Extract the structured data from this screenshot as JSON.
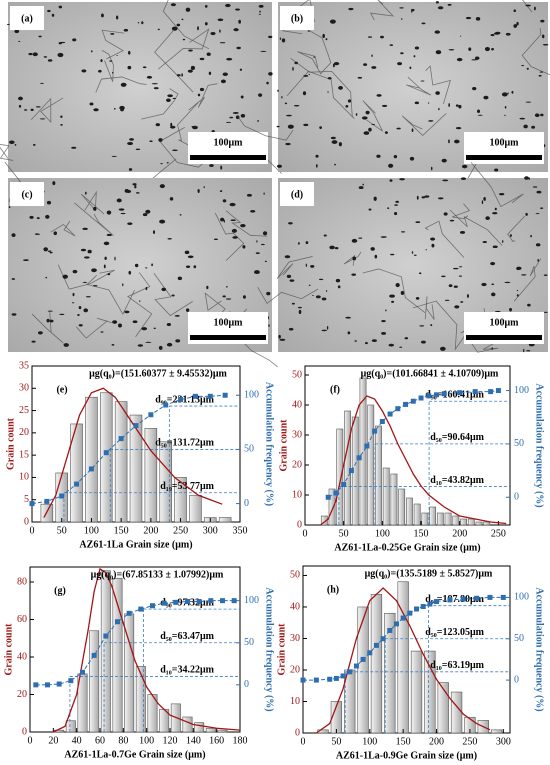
{
  "micrographs": [
    {
      "label": "(a)",
      "scale_bar": "100μm"
    },
    {
      "label": "(b)",
      "scale_bar": "100μm"
    },
    {
      "label": "(c)",
      "scale_bar": "100μm"
    },
    {
      "label": "(d)",
      "scale_bar": "100μm"
    }
  ],
  "chart_data": [
    {
      "type": "histogram",
      "panel_label": "(e)",
      "annotation": "μg(q₀)=(151.60377 ± 9.45532)μm",
      "x_label": "AZ61-1La Grain size (μm)",
      "y_label": "Grain count",
      "y2_label": "Accumulation frequency (%)",
      "bins": [
        12.5,
        37.5,
        62.5,
        87.5,
        112.5,
        137.5,
        162.5,
        187.5,
        212.5,
        237.5,
        262.5,
        287.5,
        312.5,
        337.5
      ],
      "counts": [
        4,
        11,
        22,
        28,
        29,
        27,
        24,
        21,
        18,
        10,
        6,
        1,
        1
      ],
      "bar_color": "#cfcfcf",
      "xlim": [
        0,
        350
      ],
      "xticks": [
        0,
        50,
        100,
        150,
        200,
        250,
        300,
        350
      ],
      "ylim": [
        0,
        35
      ],
      "yticks": [
        0,
        5,
        10,
        15,
        20,
        25,
        30,
        35
      ],
      "y2lim": [
        -17,
        127
      ],
      "y2ticks": [
        0,
        50,
        100
      ],
      "series": [
        {
          "color": "#a31515",
          "x": [
            20,
            40,
            60,
            80,
            100,
            120,
            140,
            160,
            180,
            200,
            220,
            240,
            260,
            280,
            300,
            320
          ],
          "values": [
            1,
            6,
            15,
            24,
            29,
            30,
            28,
            24,
            20,
            16,
            13,
            10,
            8,
            6,
            5,
            4
          ]
        },
        {
          "color": "#2e6eb0",
          "axis": "y2",
          "x": [
            0,
            25,
            50,
            75,
            100,
            125,
            150,
            175,
            200,
            225,
            250,
            275,
            300,
            325
          ],
          "values": [
            0,
            2,
            7,
            18,
            32,
            47,
            60,
            72,
            82,
            91,
            96,
            99,
            99,
            100
          ]
        }
      ],
      "percentiles": [
        {
          "value": 53.77,
          "percent": 10,
          "label": "d₁₀=53.77μm"
        },
        {
          "value": 131.72,
          "percent": 50,
          "label": "d₅₀=131.72μm"
        },
        {
          "value": 231.13,
          "percent": 90,
          "label": "d₉₀=231.13μm"
        }
      ]
    },
    {
      "type": "histogram",
      "panel_label": "(f)",
      "annotation": "μg(q₀)=(101.66841 ± 4.10709)μm",
      "x_label": "AZ61-1La-0.25Ge Grain size (μm)",
      "y_label": "Grain count",
      "y2_label": "Accumulation frequency (%)",
      "bins": [
        20,
        30,
        40,
        50,
        60,
        70,
        80,
        90,
        100,
        110,
        120,
        130,
        140,
        150,
        160,
        170,
        180,
        190,
        200,
        210,
        220,
        230,
        240
      ],
      "counts": [
        3,
        12,
        32,
        38,
        36,
        49,
        40,
        33,
        19,
        17,
        12,
        9,
        7,
        4,
        6,
        4,
        4,
        3,
        2,
        2,
        1,
        1
      ],
      "bar_color": "#cfcfcf",
      "xlim": [
        0,
        265
      ],
      "xticks": [
        0,
        50,
        100,
        150,
        200,
        250
      ],
      "ylim": [
        0,
        53
      ],
      "yticks": [
        0,
        10,
        20,
        30,
        40,
        50
      ],
      "y2lim": [
        -26,
        123
      ],
      "y2ticks": [
        0,
        50,
        100
      ],
      "series": [
        {
          "color": "#a31515",
          "x": [
            20,
            30,
            40,
            50,
            60,
            70,
            80,
            90,
            100,
            110,
            120,
            130,
            140,
            150,
            160,
            180,
            200,
            220,
            240,
            260
          ],
          "values": [
            0,
            2,
            8,
            20,
            32,
            40,
            43,
            42,
            38,
            33,
            27,
            22,
            17,
            13,
            10,
            6,
            3,
            2,
            1,
            0.5
          ]
        },
        {
          "color": "#2e6eb0",
          "axis": "y2",
          "x": [
            30,
            40,
            50,
            60,
            70,
            80,
            90,
            100,
            110,
            120,
            130,
            140,
            150,
            160,
            170,
            180,
            200,
            220,
            240,
            250
          ],
          "values": [
            0,
            4,
            12,
            25,
            37,
            48,
            62,
            71,
            78,
            83,
            87,
            90,
            93,
            95,
            96,
            97,
            98,
            99,
            99,
            100
          ]
        }
      ],
      "percentiles": [
        {
          "value": 43.82,
          "percent": 10,
          "label": "d₁₀=43.82μm"
        },
        {
          "value": 90.64,
          "percent": 50,
          "label": "d₅₀=90.64μm"
        },
        {
          "value": 160.41,
          "percent": 90,
          "label": "d₉₀=160.41μm"
        }
      ]
    },
    {
      "type": "histogram",
      "panel_label": "(g)",
      "annotation": "μg(q₀)=(67.85133 ± 1.07992)μm",
      "x_label": "AZ61-1La-0.7Ge Grain size (μm)",
      "y_label": "Grain count",
      "y2_label": "Accumulation frequency (%)",
      "bins": [
        20,
        30,
        40,
        50,
        60,
        70,
        80,
        90,
        100,
        110,
        120,
        130,
        140,
        150,
        160,
        170
      ],
      "counts": [
        1,
        6,
        31,
        54,
        86,
        82,
        63,
        35,
        20,
        12,
        15,
        8,
        5,
        2,
        1
      ],
      "bar_color": "#cfcfcf",
      "xlim": [
        0,
        180
      ],
      "xticks": [
        0,
        20,
        40,
        60,
        80,
        100,
        120,
        140,
        160,
        180
      ],
      "ylim": [
        0,
        88
      ],
      "yticks": [
        0,
        20,
        40,
        60,
        80
      ],
      "y2lim": [
        -56,
        140
      ],
      "y2ticks": [
        0,
        50,
        100
      ],
      "series": [
        {
          "color": "#a31515",
          "x": [
            20,
            30,
            40,
            50,
            55,
            60,
            65,
            70,
            80,
            90,
            100,
            110,
            120,
            140,
            160,
            180
          ],
          "values": [
            0,
            3,
            20,
            55,
            75,
            87,
            85,
            78,
            58,
            38,
            24,
            15,
            9,
            4,
            2,
            1
          ]
        },
        {
          "color": "#2e6eb0",
          "axis": "y2",
          "x": [
            5,
            15,
            25,
            35,
            45,
            55,
            65,
            75,
            85,
            95,
            105,
            115,
            125,
            135,
            145,
            155,
            165,
            175
          ],
          "values": [
            0,
            0,
            1,
            5,
            15,
            35,
            58,
            75,
            85,
            90,
            94,
            97,
            98,
            99,
            99,
            100,
            100,
            100
          ]
        }
      ],
      "percentiles": [
        {
          "value": 34.22,
          "percent": 10,
          "label": "d₁₀=34.22μm"
        },
        {
          "value": 63.47,
          "percent": 50,
          "label": "d₅₀=63.47μm"
        },
        {
          "value": 97.32,
          "percent": 90,
          "label": "d₉₀=97.32μm"
        }
      ]
    },
    {
      "type": "histogram",
      "panel_label": "(h)",
      "annotation": "μg(q₀)=(135.5189 ± 5.8527)μm",
      "x_label": "AZ61-1La-0.9Ge Grain size (μm)",
      "y_label": "Grain count",
      "y2_label": "Accumulation frequency (%)",
      "bins": [
        20,
        40,
        60,
        80,
        100,
        120,
        140,
        160,
        180,
        200,
        220,
        240,
        260,
        280,
        300
      ],
      "counts": [
        1,
        10,
        20,
        40,
        44,
        38,
        48,
        26,
        26,
        16,
        13,
        5,
        4,
        1
      ],
      "bar_color": "#cfcfcf",
      "xlim": [
        0,
        310
      ],
      "xticks": [
        0,
        50,
        100,
        150,
        200,
        250,
        300
      ],
      "ylim": [
        0,
        53
      ],
      "yticks": [
        0,
        10,
        20,
        30,
        40,
        50
      ],
      "y2lim": [
        -64,
        138
      ],
      "y2ticks": [
        0,
        50,
        100
      ],
      "series": [
        {
          "color": "#a31515",
          "x": [
            20,
            40,
            60,
            80,
            100,
            120,
            140,
            160,
            180,
            200,
            220,
            240,
            260,
            280
          ],
          "values": [
            0,
            3,
            14,
            30,
            42,
            46,
            42,
            34,
            25,
            17,
            11,
            6,
            3,
            1
          ]
        },
        {
          "color": "#2e6eb0",
          "axis": "y2",
          "x": [
            0,
            20,
            40,
            50,
            60,
            70,
            80,
            90,
            100,
            110,
            120,
            130,
            140,
            150,
            160,
            170,
            180,
            190,
            200,
            220,
            240,
            260,
            280,
            300
          ],
          "values": [
            0,
            0,
            1,
            2,
            5,
            10,
            17,
            25,
            33,
            42,
            50,
            60,
            68,
            75,
            81,
            86,
            89,
            92,
            95,
            97,
            98,
            99,
            100,
            100
          ]
        }
      ],
      "percentiles": [
        {
          "value": 63.19,
          "percent": 10,
          "label": "d₁₀=63.19μm"
        },
        {
          "value": 123.05,
          "percent": 50,
          "label": "d₅₀=123.05μm"
        },
        {
          "value": 187.8,
          "percent": 90,
          "label": "d₉₀=187.80μm"
        }
      ]
    }
  ]
}
